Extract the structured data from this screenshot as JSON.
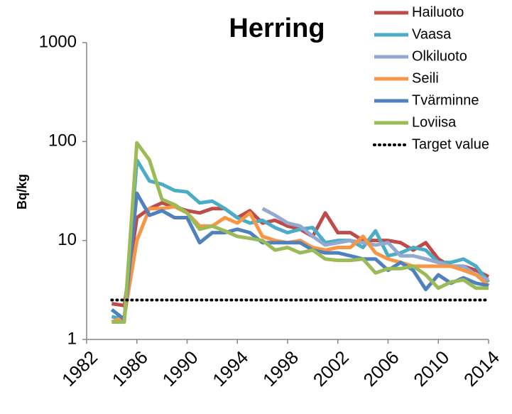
{
  "chart_data": {
    "type": "line",
    "title": "Herring",
    "y_label": "Bq/kg",
    "log_y": true,
    "x": [
      1984,
      1985,
      1986,
      1987,
      1988,
      1989,
      1990,
      1991,
      1992,
      1993,
      1994,
      1995,
      1996,
      1997,
      1998,
      1999,
      2000,
      2001,
      2002,
      2003,
      2004,
      2005,
      2006,
      2007,
      2008,
      2009,
      2010,
      2011,
      2012,
      2013,
      2014
    ],
    "xlim": [
      1982,
      2014
    ],
    "xticks": [
      1982,
      1986,
      1990,
      1994,
      1998,
      2002,
      2006,
      2010,
      2014
    ],
    "ylim": [
      1,
      1000
    ],
    "yticks": [
      1,
      10,
      100,
      1000
    ],
    "legend": "top-right",
    "series": [
      {
        "name": "Hailuoto",
        "color": "#be4b48",
        "values": [
          2.3,
          2.2,
          17,
          21,
          24,
          22,
          20,
          19,
          21,
          21,
          17,
          20,
          15,
          16,
          14,
          13,
          11,
          19,
          12,
          12,
          10,
          10,
          10,
          9.5,
          8,
          9.5,
          6.5,
          5.5,
          5.5,
          5,
          4.3
        ]
      },
      {
        "name": "Vaasa",
        "color": "#4bacc6",
        "values": [
          1.7,
          1.6,
          65,
          40,
          37,
          32,
          31,
          24,
          25,
          21,
          17,
          15,
          16,
          13.5,
          12,
          13,
          13.5,
          9.5,
          10,
          10,
          8.5,
          12.5,
          7,
          7.5,
          8.5,
          8,
          6,
          6,
          6.5,
          5.5,
          3.8
        ]
      },
      {
        "name": "Olkiluoto",
        "color": "#93a9cf",
        "values": [
          null,
          null,
          null,
          null,
          null,
          null,
          null,
          null,
          null,
          null,
          null,
          null,
          21,
          18,
          15,
          14,
          11,
          9,
          9.5,
          10,
          9.5,
          9,
          9.5,
          7,
          7,
          6.5,
          6,
          5.5,
          5.5,
          4.5,
          4
        ]
      },
      {
        "name": "Seili",
        "color": "#f79646",
        "values": [
          1.5,
          1.7,
          10,
          21,
          21,
          22,
          19,
          14,
          14,
          17,
          15,
          19,
          11,
          10,
          9.5,
          10,
          8.5,
          8,
          8.5,
          8.5,
          11,
          7.5,
          6.5,
          6,
          5.5,
          5.5,
          5.5,
          5.5,
          5,
          4.5,
          3.5
        ]
      },
      {
        "name": "Tvärminne",
        "color": "#4f81bd",
        "values": [
          2,
          1.6,
          30,
          18,
          20,
          17,
          17,
          9.5,
          12,
          12,
          13,
          12,
          9.5,
          9.5,
          9.5,
          9.5,
          8,
          7.5,
          7.5,
          7,
          6.5,
          6.5,
          5,
          6,
          5,
          3.2,
          4.5,
          3.7,
          4.2,
          3.7,
          3.5
        ]
      },
      {
        "name": "Loviisa",
        "color": "#9bbb59",
        "values": [
          1.5,
          1.5,
          97,
          65,
          26,
          23,
          19,
          13,
          14,
          12.5,
          11,
          10.5,
          10,
          8,
          8.5,
          7.5,
          8,
          6.5,
          6.3,
          6.3,
          6.5,
          4.7,
          5.2,
          5.2,
          5.5,
          4.5,
          3.3,
          3.8,
          4,
          3.3,
          3.3
        ]
      },
      {
        "name": "Target value",
        "color": "#000000",
        "dash": "dotted",
        "values": [
          2.5,
          2.5,
          2.5,
          2.5,
          2.5,
          2.5,
          2.5,
          2.5,
          2.5,
          2.5,
          2.5,
          2.5,
          2.5,
          2.5,
          2.5,
          2.5,
          2.5,
          2.5,
          2.5,
          2.5,
          2.5,
          2.5,
          2.5,
          2.5,
          2.5,
          2.5,
          2.5,
          2.5,
          2.5,
          2.5,
          2.5
        ]
      }
    ]
  }
}
